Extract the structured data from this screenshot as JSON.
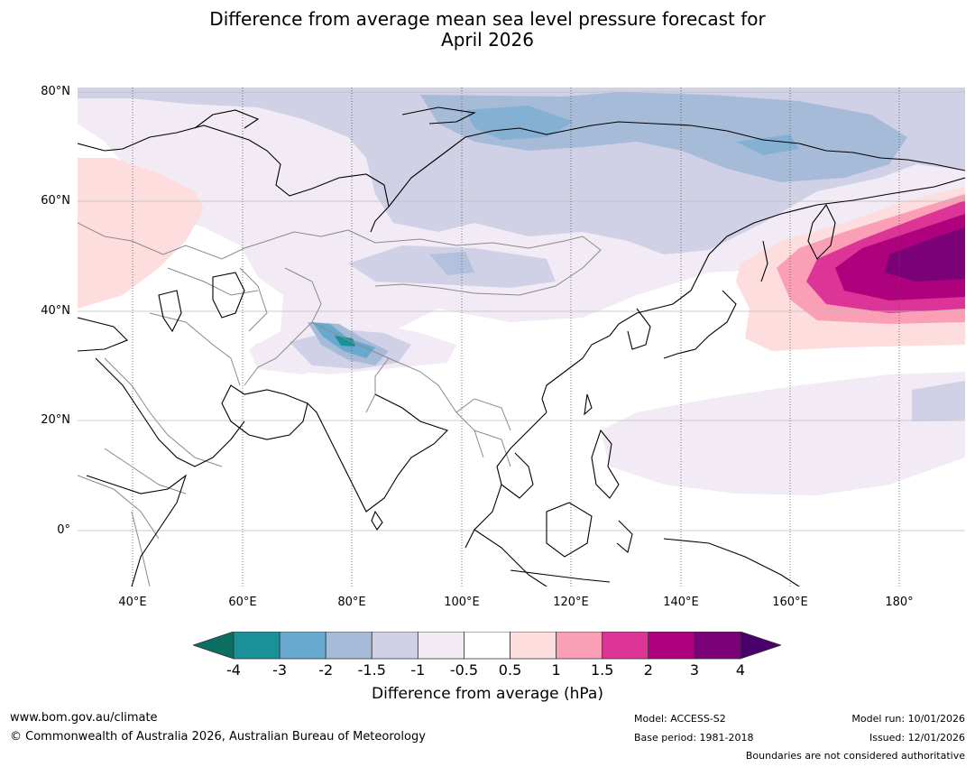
{
  "title_line1": "Difference from average mean sea level pressure forecast for",
  "title_line2": "April 2026",
  "lat_labels": [
    "80°N",
    "60°N",
    "40°N",
    "20°N",
    "0°"
  ],
  "lon_labels": [
    "40°E",
    "60°E",
    "80°E",
    "100°E",
    "120°E",
    "140°E",
    "160°E",
    "180°"
  ],
  "legend": {
    "label": "Difference from average (hPa)",
    "ticks": [
      "-4",
      "-3",
      "-2",
      "-1.5",
      "-1",
      "-0.5",
      "0.5",
      "1",
      "1.5",
      "2",
      "3",
      "4"
    ],
    "colors": [
      "#0b6e63",
      "#1a9099",
      "#67a9cf",
      "#a6bbd8",
      "#d0d1e6",
      "#f2eaf5",
      "#ffffff",
      "#fddddd",
      "#fa9fb5",
      "#dd3497",
      "#ae017e",
      "#7a0177",
      "#49006a"
    ]
  },
  "footer": {
    "url": "www.bom.gov.au/climate",
    "copyright": "© Commonwealth of Australia 2026, Australian Bureau of Meteorology",
    "model": "Model: ACCESS-S2",
    "base_period": "Base period: 1981-2018",
    "model_run": "Model run: 10/01/2026",
    "issued": "Issued: 12/01/2026",
    "disclaimer": "Boundaries are not considered authoritative"
  }
}
